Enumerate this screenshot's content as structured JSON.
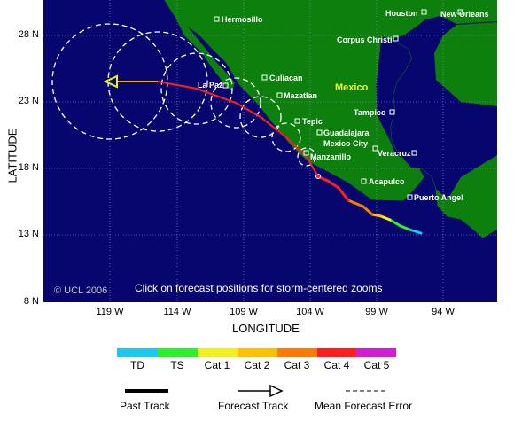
{
  "map": {
    "copyright": "© UCL 2006",
    "instruction": "Click on forecast positions for storm-centered zooms",
    "region_label": "Mexico",
    "colors": {
      "ocean": "#06066e",
      "land": "#0c7f0c",
      "grid": "#9a9acc",
      "city": "#ffffff",
      "forecast_track": "#ffa500",
      "error_circle": "#ffffff"
    }
  },
  "axes": {
    "x_title": "LONGITUDE",
    "y_title": "LATITUDE",
    "x_ticks": [
      "119 W",
      "114 W",
      "109 W",
      "104 W",
      "99 W",
      "94 W"
    ],
    "y_ticks": [
      "28 N",
      "23 N",
      "18 N",
      "13 N",
      "8 N"
    ]
  },
  "cities": [
    {
      "name": "Hermosillo"
    },
    {
      "name": "Houston"
    },
    {
      "name": "New Orleans"
    },
    {
      "name": "Corpus Christi"
    },
    {
      "name": "Culiacan"
    },
    {
      "name": "La Paz"
    },
    {
      "name": "Mazatlan"
    },
    {
      "name": "Tampico"
    },
    {
      "name": "Tepic"
    },
    {
      "name": "Guadalajara"
    },
    {
      "name": "Mexico City"
    },
    {
      "name": "Veracruz"
    },
    {
      "name": "Manzanillo"
    },
    {
      "name": "Acapulco"
    },
    {
      "name": "Puerto Angel"
    }
  ],
  "intensity_legend": [
    {
      "label": "TD",
      "color": "#1ac8f0"
    },
    {
      "label": "TS",
      "color": "#2cf02c"
    },
    {
      "label": "Cat 1",
      "color": "#f0f01e"
    },
    {
      "label": "Cat 2",
      "color": "#ffc000"
    },
    {
      "label": "Cat 3",
      "color": "#ff7a00"
    },
    {
      "label": "Cat 4",
      "color": "#ff1e1e"
    },
    {
      "label": "Cat 5",
      "color": "#d21ed2"
    }
  ],
  "track_legend": {
    "past": "Past Track",
    "forecast": "Forecast Track",
    "error": "Mean Forecast Error"
  }
}
